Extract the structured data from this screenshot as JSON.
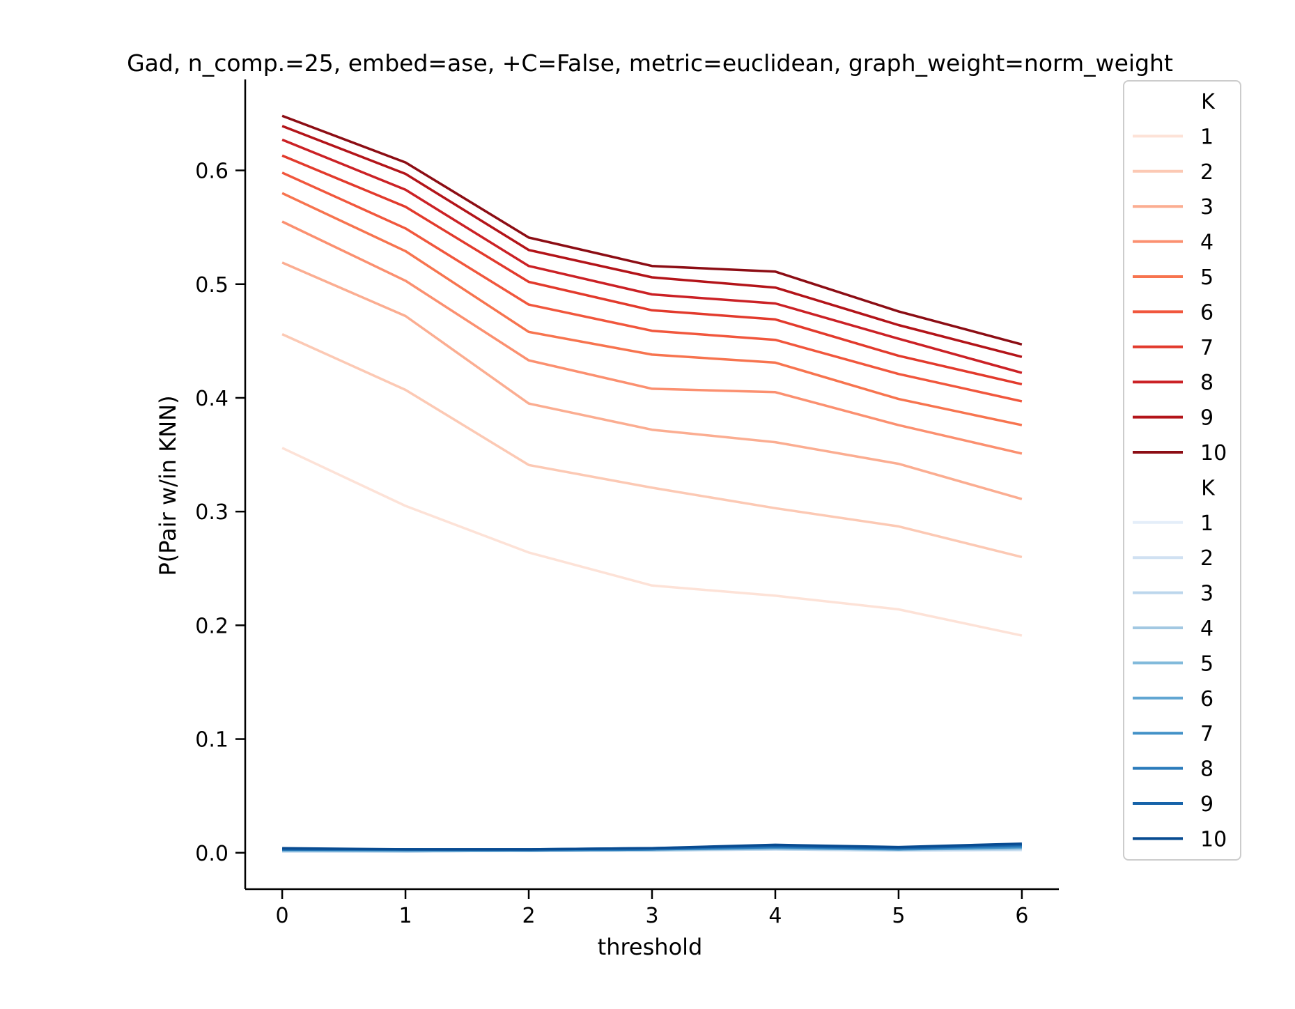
{
  "chart_data": {
    "type": "line",
    "title": "Gad, n_comp.=25, embed=ase, +C=False, metric=euclidean, graph_weight=norm_weight",
    "xlabel": "threshold",
    "ylabel": "P(Pair w/in KNN)",
    "x": [
      0,
      1,
      2,
      3,
      4,
      5,
      6
    ],
    "x_ticks": [
      "0",
      "1",
      "2",
      "3",
      "4",
      "5",
      "6"
    ],
    "y_ticks": [
      "0.0",
      "0.1",
      "0.2",
      "0.3",
      "0.4",
      "0.5",
      "0.6"
    ],
    "xlim": [
      -0.3,
      6.3
    ],
    "ylim": [
      -0.032,
      0.68
    ],
    "grid": false,
    "legend": {
      "position": "right-outside",
      "groups": [
        {
          "title": "K",
          "entries": [
            {
              "label": "1",
              "color": "#fde2d7"
            },
            {
              "label": "2",
              "color": "#fcc9b4"
            },
            {
              "label": "3",
              "color": "#fbad91"
            },
            {
              "label": "4",
              "color": "#fb9070"
            },
            {
              "label": "5",
              "color": "#f7744f"
            },
            {
              "label": "6",
              "color": "#f1573d"
            },
            {
              "label": "7",
              "color": "#e23a2c"
            },
            {
              "label": "8",
              "color": "#cb2125"
            },
            {
              "label": "9",
              "color": "#b31419"
            },
            {
              "label": "10",
              "color": "#8c0d14"
            }
          ]
        },
        {
          "title": "K",
          "entries": [
            {
              "label": "1",
              "color": "#e4eef9"
            },
            {
              "label": "2",
              "color": "#d0e1f2"
            },
            {
              "label": "3",
              "color": "#bcd6ec"
            },
            {
              "label": "4",
              "color": "#a2c8e2"
            },
            {
              "label": "5",
              "color": "#82badb"
            },
            {
              "label": "6",
              "color": "#61a6d2"
            },
            {
              "label": "7",
              "color": "#4291c7"
            },
            {
              "label": "8",
              "color": "#2b7bbb"
            },
            {
              "label": "9",
              "color": "#1663a9"
            },
            {
              "label": "10",
              "color": "#084b91"
            }
          ]
        }
      ]
    },
    "series": [
      {
        "group": 0,
        "label": "1",
        "color": "#fde2d7",
        "values": [
          0.356,
          0.305,
          0.264,
          0.235,
          0.226,
          0.214,
          0.191
        ]
      },
      {
        "group": 0,
        "label": "2",
        "color": "#fcc9b4",
        "values": [
          0.456,
          0.407,
          0.341,
          0.321,
          0.303,
          0.287,
          0.26
        ]
      },
      {
        "group": 0,
        "label": "3",
        "color": "#fbad91",
        "values": [
          0.519,
          0.472,
          0.395,
          0.372,
          0.361,
          0.342,
          0.311
        ]
      },
      {
        "group": 0,
        "label": "4",
        "color": "#fb9070",
        "values": [
          0.555,
          0.503,
          0.433,
          0.408,
          0.405,
          0.376,
          0.351
        ]
      },
      {
        "group": 0,
        "label": "5",
        "color": "#f7744f",
        "values": [
          0.58,
          0.529,
          0.458,
          0.438,
          0.431,
          0.399,
          0.376
        ]
      },
      {
        "group": 0,
        "label": "6",
        "color": "#f1573d",
        "values": [
          0.598,
          0.549,
          0.482,
          0.459,
          0.451,
          0.421,
          0.397
        ]
      },
      {
        "group": 0,
        "label": "7",
        "color": "#e23a2c",
        "values": [
          0.613,
          0.568,
          0.502,
          0.477,
          0.469,
          0.437,
          0.412
        ]
      },
      {
        "group": 0,
        "label": "8",
        "color": "#cb2125",
        "values": [
          0.627,
          0.583,
          0.516,
          0.491,
          0.483,
          0.452,
          0.422
        ]
      },
      {
        "group": 0,
        "label": "9",
        "color": "#b31419",
        "values": [
          0.639,
          0.597,
          0.53,
          0.506,
          0.497,
          0.464,
          0.436
        ]
      },
      {
        "group": 0,
        "label": "10",
        "color": "#8c0d14",
        "values": [
          0.648,
          0.607,
          0.541,
          0.516,
          0.511,
          0.476,
          0.447
        ]
      },
      {
        "group": 1,
        "label": "1",
        "color": "#e4eef9",
        "values": [
          0.001,
          0.001,
          0.002,
          0.002,
          0.003,
          0.002,
          0.002
        ]
      },
      {
        "group": 1,
        "label": "2",
        "color": "#d0e1f2",
        "values": [
          0.001,
          0.001,
          0.002,
          0.002,
          0.003,
          0.002,
          0.003
        ]
      },
      {
        "group": 1,
        "label": "3",
        "color": "#bcd6ec",
        "values": [
          0.002,
          0.001,
          0.002,
          0.002,
          0.003,
          0.002,
          0.003
        ]
      },
      {
        "group": 1,
        "label": "4",
        "color": "#a2c8e2",
        "values": [
          0.002,
          0.002,
          0.002,
          0.002,
          0.004,
          0.003,
          0.004
        ]
      },
      {
        "group": 1,
        "label": "5",
        "color": "#82badb",
        "values": [
          0.002,
          0.002,
          0.002,
          0.003,
          0.004,
          0.003,
          0.004
        ]
      },
      {
        "group": 1,
        "label": "6",
        "color": "#61a6d2",
        "values": [
          0.002,
          0.002,
          0.002,
          0.003,
          0.004,
          0.003,
          0.005
        ]
      },
      {
        "group": 1,
        "label": "7",
        "color": "#4291c7",
        "values": [
          0.003,
          0.002,
          0.002,
          0.003,
          0.005,
          0.003,
          0.005
        ]
      },
      {
        "group": 1,
        "label": "8",
        "color": "#2b7bbb",
        "values": [
          0.003,
          0.003,
          0.002,
          0.003,
          0.005,
          0.004,
          0.006
        ]
      },
      {
        "group": 1,
        "label": "9",
        "color": "#1663a9",
        "values": [
          0.003,
          0.003,
          0.003,
          0.004,
          0.006,
          0.004,
          0.007
        ]
      },
      {
        "group": 1,
        "label": "10",
        "color": "#084b91",
        "values": [
          0.004,
          0.003,
          0.003,
          0.004,
          0.007,
          0.005,
          0.008
        ]
      }
    ]
  }
}
